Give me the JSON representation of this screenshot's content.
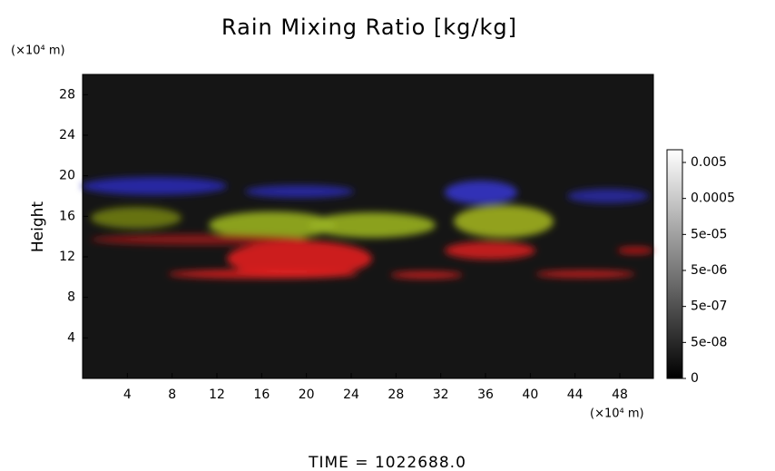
{
  "chart_data": {
    "type": "volume-render",
    "title": "Rain Mixing Ratio [kg/kg]",
    "y_unit": "(×10⁴ m)",
    "x_unit": "(×10⁴ m)",
    "ylabel": "Height",
    "xlim": [
      0,
      51
    ],
    "xticks": [
      4,
      8,
      12,
      16,
      20,
      24,
      28,
      32,
      36,
      40,
      44,
      48
    ],
    "ylim": [
      0,
      30
    ],
    "yticks": [
      4,
      8,
      12,
      16,
      20,
      24,
      28
    ],
    "colorbar": {
      "ticks": [
        {
          "value": 0.005,
          "label": "0.005"
        },
        0.0005,
        {
          "value": 5e-05,
          "label": "5e-05"
        },
        {
          "value": 5e-06,
          "label": "5e-06"
        },
        {
          "value": 5e-07,
          "label": "5e-07"
        },
        {
          "value": 5e-08,
          "label": "5e-08"
        },
        0
      ]
    },
    "footer": "TIME = 1022688.0"
  }
}
